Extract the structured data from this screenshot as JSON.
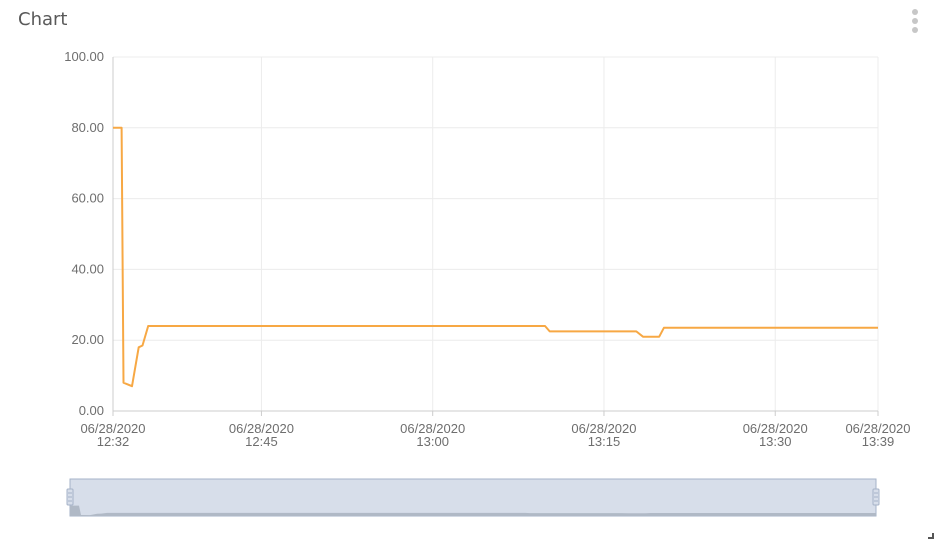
{
  "widget": {
    "title": "Chart",
    "menu_icon": "more-vertical-icon",
    "resize_icon": "resize-corner-icon"
  },
  "colors": {
    "series": "#f7a844",
    "grid": "#ececec",
    "axis": "#cccccc",
    "slider_fill": "#d7deea",
    "slider_border": "#a6b3c8",
    "slider_shadow": "#b0b9c6"
  },
  "chart_data": {
    "type": "line",
    "title": "",
    "xlabel": "",
    "ylabel": "",
    "ylim": [
      0,
      100
    ],
    "xlim": [
      "06/28/2020 12:32",
      "06/28/2020 13:39"
    ],
    "grid": true,
    "y_ticks": [
      "0.00",
      "20.00",
      "40.00",
      "60.00",
      "80.00",
      "100.00"
    ],
    "x_ticks": [
      {
        "time": "06/28/2020 12:32",
        "date": "06/28/2020",
        "clock": "12:32"
      },
      {
        "time": "06/28/2020 12:45",
        "date": "06/28/2020",
        "clock": "12:45"
      },
      {
        "time": "06/28/2020 13:00",
        "date": "06/28/2020",
        "clock": "13:00"
      },
      {
        "time": "06/28/2020 13:15",
        "date": "06/28/2020",
        "clock": "13:15"
      },
      {
        "time": "06/28/2020 13:30",
        "date": "06/28/2020",
        "clock": "13:30"
      },
      {
        "time": "06/28/2020 13:39",
        "date": "06/28/2020",
        "clock": "13:39"
      }
    ],
    "series": [
      {
        "points": [
          [
            "06/28/2020 12:32:00",
            80
          ],
          [
            "06/28/2020 12:32:45",
            80
          ],
          [
            "06/28/2020 12:32:55",
            8
          ],
          [
            "06/28/2020 12:33:40",
            7
          ],
          [
            "06/28/2020 12:34:15",
            18
          ],
          [
            "06/28/2020 12:34:35",
            18.5
          ],
          [
            "06/28/2020 12:35:05",
            24
          ],
          [
            "06/28/2020 13:09:50",
            24
          ],
          [
            "06/28/2020 13:10:15",
            22.5
          ],
          [
            "06/28/2020 13:17:50",
            22.5
          ],
          [
            "06/28/2020 13:18:25",
            21
          ],
          [
            "06/28/2020 13:19:50",
            21
          ],
          [
            "06/28/2020 13:20:15",
            23.5
          ],
          [
            "06/28/2020 13:39:00",
            23.5
          ]
        ]
      }
    ],
    "data_zoom": {
      "start_percent": 0,
      "end_percent": 100
    }
  }
}
